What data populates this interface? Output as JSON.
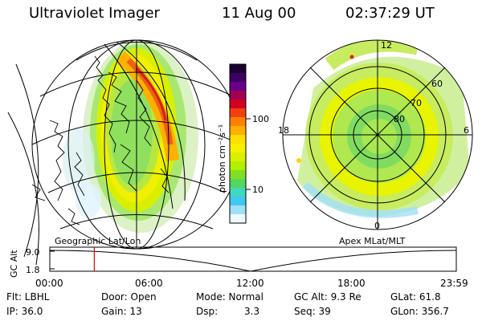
{
  "header": {
    "instrument": "Ultraviolet Imager",
    "date": "11 Aug 00",
    "time": "02:37:29 UT"
  },
  "colorbar": {
    "unit_label": "photon cm⁻²s⁻¹",
    "ticks": [
      "100",
      "10"
    ],
    "colors": [
      "#1a0030",
      "#3b0060",
      "#6a0088",
      "#a00050",
      "#d00020",
      "#f04010",
      "#ff8000",
      "#ffb000",
      "#ffe000",
      "#f8f000",
      "#d8f000",
      "#b0f000",
      "#80e020",
      "#50d860",
      "#40d8c0",
      "#40c8f0",
      "#a0e0f8",
      "#f0f8ff"
    ]
  },
  "polar_map": {
    "lat_labels": [
      "60",
      "70",
      "80"
    ],
    "mlt_labels": {
      "top": "12",
      "left": "18",
      "right": "6",
      "bottom": "0"
    }
  },
  "panel_labels": {
    "left": "Geographic Lat/Lon",
    "right": "Apex MLat/MLT"
  },
  "altitude_plot": {
    "ylabel": "GC Alt",
    "yticks": [
      "9.0",
      "1.8"
    ],
    "xticks": [
      "00:00",
      "06:00",
      "12:00",
      "18:00",
      "23:59"
    ],
    "current_time_fraction": 0.1094
  },
  "info": {
    "row1": {
      "filter": "Flt: LBHL",
      "door": "Door: Open",
      "mode": "Mode: Normal",
      "gc_alt": "GC Alt: 9.3 Re",
      "glat": "GLat: 61.8"
    },
    "row2": {
      "ip": "IP: 36.0",
      "gain": "Gain: 13",
      "dsp_label": "Dsp:",
      "dsp_value": "3.3",
      "seq": "Seq: 39",
      "glon": "GLon: 356.7"
    }
  }
}
